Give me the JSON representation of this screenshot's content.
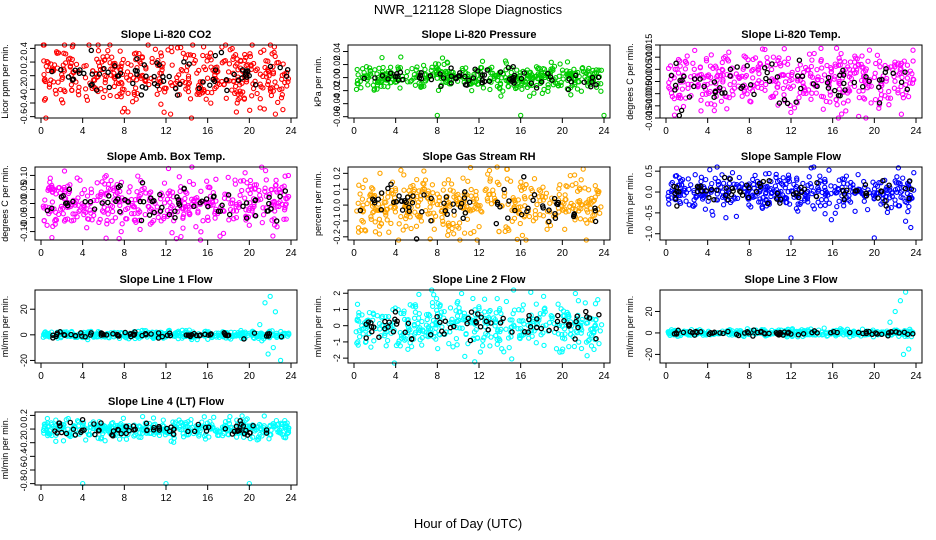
{
  "title": "NWR_121128  Slope Diagnostics",
  "xlabel": "Hour of Day (UTC)",
  "colors": {
    "black_points": "#000000",
    "axis": "#000000"
  },
  "chart_data": [
    {
      "type": "scatter",
      "title": "Slope Li-820 CO2",
      "ylabel": "Licor ppm per min.",
      "color": "#ff0000",
      "xlim": [
        0,
        24
      ],
      "xticks": [
        0,
        4,
        8,
        12,
        16,
        20,
        24
      ],
      "ylim": [
        -0.62,
        0.45
      ],
      "yticks": [
        "-0.6",
        "-0.4",
        "-0.2",
        "0.0",
        "0.2",
        "0.4"
      ],
      "yticks_values": [
        -0.6,
        -0.4,
        -0.2,
        0.0,
        0.2,
        0.4
      ],
      "spread": 0.22,
      "outliers": [
        {
          "x": 8,
          "y": -0.48
        },
        {
          "x": 1.5,
          "y": 0.35
        }
      ],
      "grid": false
    },
    {
      "type": "scatter",
      "title": "Slope Li-820 Pressure",
      "ylabel": "kPa per min.",
      "color": "#00cc00",
      "xlim": [
        0,
        24
      ],
      "xticks": [
        0,
        4,
        8,
        12,
        16,
        20,
        24
      ],
      "ylim": [
        -0.062,
        0.05
      ],
      "yticks": [
        "-0.06",
        "-0.04",
        "-0.02",
        "0.00",
        "0.02",
        "0.04"
      ],
      "yticks_values": [
        -0.06,
        -0.04,
        -0.02,
        0.0,
        0.02,
        0.04
      ],
      "spread": 0.01,
      "outliers": [
        {
          "x": 8,
          "y": -0.058
        },
        {
          "x": 16,
          "y": -0.058
        },
        {
          "x": 24,
          "y": -0.058
        },
        {
          "x": 8.5,
          "y": 0.03
        }
      ],
      "grid": false
    },
    {
      "type": "scatter",
      "title": "Slope Li-820 Temp.",
      "ylabel": "degrees C per min.",
      "color": "#ff00ff",
      "xlim": [
        0,
        24
      ],
      "xticks": [
        0,
        4,
        8,
        12,
        16,
        20,
        24
      ],
      "ylim": [
        -0.015,
        0.015
      ],
      "yticks": [
        "-0.015",
        "-0.010",
        "-0.005",
        "0.000",
        "0.005",
        "0.010",
        "0.015"
      ],
      "yticks_values": [
        -0.015,
        -0.01,
        -0.005,
        0.0,
        0.005,
        0.01,
        0.015
      ],
      "spread": 0.006,
      "outliers": [],
      "grid": false
    },
    {
      "type": "scatter",
      "title": "Slope Amb. Box Temp.",
      "ylabel": "degrees C per min.",
      "color": "#ff00ff",
      "xlim": [
        0,
        24
      ],
      "xticks": [
        0,
        4,
        8,
        12,
        16,
        20,
        24
      ],
      "ylim": [
        -0.13,
        0.13
      ],
      "yticks": [
        "-0.10",
        "-0.05",
        "0.00",
        "0.05",
        "0.10"
      ],
      "yticks_values": [
        -0.1,
        -0.05,
        0.0,
        0.05,
        0.1
      ],
      "spread": 0.05,
      "outliers": [
        {
          "x": 7.5,
          "y": -0.125
        },
        {
          "x": 13,
          "y": -0.125
        }
      ],
      "grid": false
    },
    {
      "type": "scatter",
      "title": "Slope Gas Stream RH",
      "ylabel": "percent per min.",
      "color": "#ffa500",
      "xlim": [
        0,
        24
      ],
      "xticks": [
        0,
        4,
        8,
        12,
        16,
        20,
        24
      ],
      "ylim": [
        -0.22,
        0.24
      ],
      "yticks": [
        "-0.2",
        "-0.1",
        "0.0",
        "0.1",
        "0.2"
      ],
      "yticks_values": [
        -0.2,
        -0.1,
        0.0,
        0.1,
        0.2
      ],
      "spread": 0.09,
      "outliers": [
        {
          "x": 2.5,
          "y": 0.2
        },
        {
          "x": 4.5,
          "y": 0.22
        }
      ],
      "grid": false
    },
    {
      "type": "scatter",
      "title": "Slope Sample Flow",
      "ylabel": "ml/min per min.",
      "color": "#0000ff",
      "xlim": [
        0,
        24
      ],
      "xticks": [
        0,
        4,
        8,
        12,
        16,
        20,
        24
      ],
      "ylim": [
        -1.15,
        0.6
      ],
      "yticks": [
        "-1.0",
        "-0.5",
        "0.0",
        "0.5"
      ],
      "yticks_values": [
        -1.0,
        -0.5,
        0.0,
        0.5
      ],
      "spread": 0.22,
      "outliers": [
        {
          "x": 12,
          "y": -1.1
        },
        {
          "x": 20,
          "y": -1.1
        },
        {
          "x": 23,
          "y": -0.7
        },
        {
          "x": 23.5,
          "y": -0.85
        }
      ],
      "grid": false
    },
    {
      "type": "scatter",
      "title": "Slope Line 1 Flow",
      "ylabel": "ml/min per min.",
      "color": "#00ffff",
      "xlim": [
        0,
        24
      ],
      "xticks": [
        0,
        4,
        8,
        12,
        16,
        20,
        24
      ],
      "ylim": [
        -22,
        35
      ],
      "yticks": [
        "-20",
        "0",
        "20"
      ],
      "yticks_values": [
        -20,
        0,
        20
      ],
      "spread": 1.5,
      "outliers": [
        {
          "x": 21.5,
          "y": 25
        },
        {
          "x": 22,
          "y": 30
        },
        {
          "x": 22.5,
          "y": 18
        },
        {
          "x": 21.8,
          "y": -15
        },
        {
          "x": 22.3,
          "y": -10
        },
        {
          "x": 23,
          "y": -20
        },
        {
          "x": 21,
          "y": 8
        }
      ],
      "grid": false
    },
    {
      "type": "scatter",
      "title": "Slope Line 2 Flow",
      "ylabel": "ml/min per min.",
      "color": "#00ffff",
      "xlim": [
        0,
        24
      ],
      "xticks": [
        0,
        4,
        8,
        12,
        16,
        20,
        24
      ],
      "ylim": [
        -2.3,
        2.2
      ],
      "yticks": [
        "-2",
        "-1",
        "0",
        "1",
        "2"
      ],
      "yticks_values": [
        -2,
        -1,
        0,
        1,
        2
      ],
      "spread": 0.8,
      "outliers": [],
      "grid": false
    },
    {
      "type": "scatter",
      "title": "Slope Line 3 Flow",
      "ylabel": "ml/min per min.",
      "color": "#00ffff",
      "xlim": [
        0,
        24
      ],
      "xticks": [
        0,
        4,
        8,
        12,
        16,
        20,
        24
      ],
      "ylim": [
        -28,
        40
      ],
      "yticks": [
        "-20",
        "0",
        "20"
      ],
      "yticks_values": [
        -20,
        0,
        20
      ],
      "spread": 1.5,
      "outliers": [
        {
          "x": 22,
          "y": 20
        },
        {
          "x": 22.5,
          "y": 30
        },
        {
          "x": 23,
          "y": 38
        },
        {
          "x": 21.5,
          "y": 10
        },
        {
          "x": 22.8,
          "y": -20
        },
        {
          "x": 23.3,
          "y": -15
        }
      ],
      "grid": false
    },
    {
      "type": "scatter",
      "title": "Slope Line 4 (LT) Flow",
      "ylabel": "ml/min per min.",
      "color": "#00ffff",
      "xlim": [
        0,
        24
      ],
      "xticks": [
        0,
        4,
        8,
        12,
        16,
        20,
        24
      ],
      "ylim": [
        -0.82,
        0.25
      ],
      "yticks": [
        "-0.8",
        "-0.6",
        "-0.4",
        "-0.2",
        "0.0",
        "0.2"
      ],
      "yticks_values": [
        -0.8,
        -0.6,
        -0.4,
        -0.2,
        0.0,
        0.2
      ],
      "spread": 0.07,
      "outliers": [
        {
          "x": 4,
          "y": -0.8
        },
        {
          "x": 12,
          "y": -0.8
        },
        {
          "x": 20,
          "y": -0.8
        }
      ],
      "grid": false
    }
  ]
}
